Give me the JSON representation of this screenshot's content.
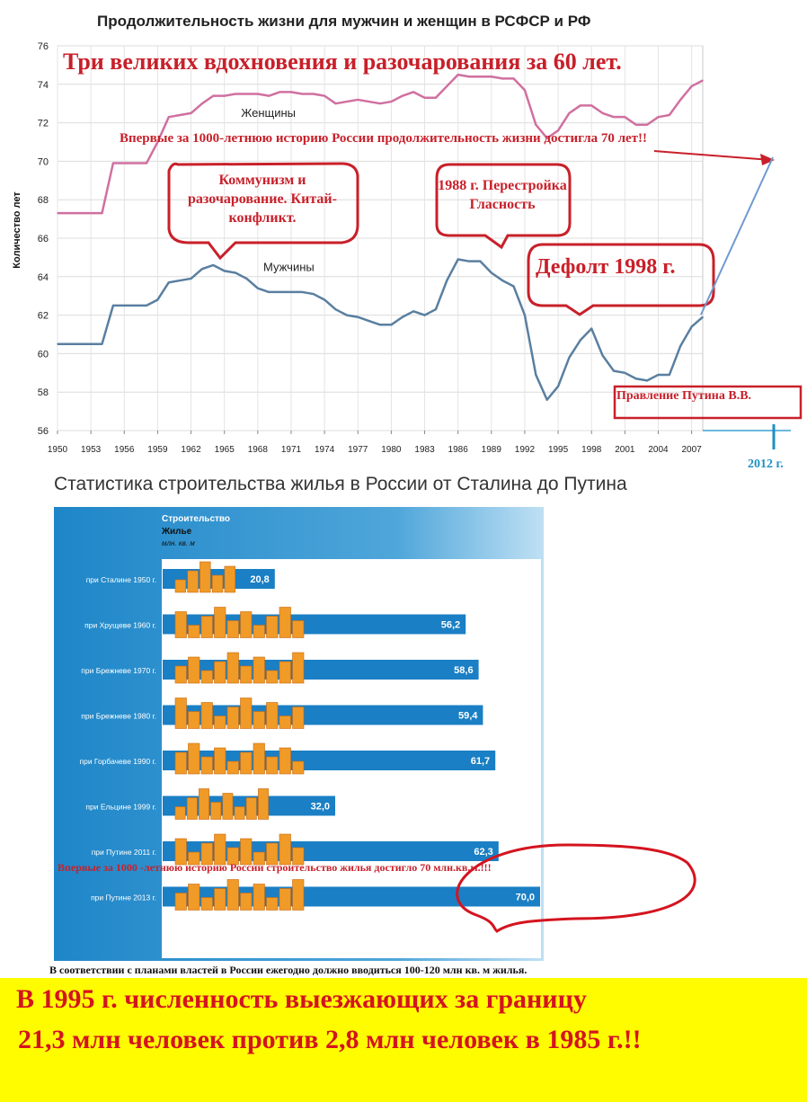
{
  "chart_data": [
    {
      "type": "line",
      "title": "Продолжительность жизни для мужчин и женщин в РСФСР и РФ",
      "ylabel": "Количество лет",
      "xlabel": "",
      "ylim": [
        56,
        76
      ],
      "xlim": [
        1950,
        2008
      ],
      "yticks": [
        56,
        58,
        60,
        62,
        64,
        66,
        68,
        70,
        72,
        74,
        76
      ],
      "xticks": [
        "1950",
        "1953",
        "1956",
        "1959",
        "1962",
        "1965",
        "1968",
        "1971",
        "1974",
        "1977",
        "1980",
        "1983",
        "1986",
        "1989",
        "1992",
        "1995",
        "1998",
        "2001",
        "2004",
        "2007"
      ],
      "grid": true,
      "series": [
        {
          "name": "Женщины",
          "color": "#d070a0",
          "x": [
            1950,
            1951,
            1952,
            1953,
            1954,
            1955,
            1956,
            1957,
            1958,
            1959,
            1960,
            1961,
            1962,
            1963,
            1964,
            1965,
            1966,
            1967,
            1968,
            1969,
            1970,
            1971,
            1972,
            1973,
            1974,
            1975,
            1976,
            1977,
            1978,
            1979,
            1980,
            1981,
            1982,
            1983,
            1984,
            1985,
            1986,
            1987,
            1988,
            1989,
            1990,
            1991,
            1992,
            1993,
            1994,
            1995,
            1996,
            1997,
            1998,
            1999,
            2000,
            2001,
            2002,
            2003,
            2004,
            2005,
            2006,
            2007,
            2008
          ],
          "y": [
            67.3,
            67.3,
            67.3,
            67.3,
            67.3,
            69.9,
            69.9,
            69.9,
            69.9,
            71.0,
            72.3,
            72.4,
            72.5,
            73.0,
            73.4,
            73.4,
            73.5,
            73.5,
            73.5,
            73.4,
            73.6,
            73.6,
            73.5,
            73.5,
            73.4,
            73.0,
            73.1,
            73.2,
            73.1,
            73.0,
            73.1,
            73.4,
            73.6,
            73.3,
            73.3,
            73.9,
            74.5,
            74.4,
            74.4,
            74.4,
            74.3,
            74.3,
            73.7,
            71.9,
            71.2,
            71.6,
            72.5,
            72.9,
            72.9,
            72.5,
            72.3,
            72.3,
            71.9,
            71.9,
            72.3,
            72.4,
            73.2,
            73.9,
            74.2
          ]
        },
        {
          "name": "Мужчины",
          "color": "#5a7fa0",
          "x": [
            1950,
            1951,
            1952,
            1953,
            1954,
            1955,
            1956,
            1957,
            1958,
            1959,
            1960,
            1961,
            1962,
            1963,
            1964,
            1965,
            1966,
            1967,
            1968,
            1969,
            1970,
            1971,
            1972,
            1973,
            1974,
            1975,
            1976,
            1977,
            1978,
            1979,
            1980,
            1981,
            1982,
            1983,
            1984,
            1985,
            1986,
            1987,
            1988,
            1989,
            1990,
            1991,
            1992,
            1993,
            1994,
            1995,
            1996,
            1997,
            1998,
            1999,
            2000,
            2001,
            2002,
            2003,
            2004,
            2005,
            2006,
            2007,
            2008
          ],
          "y": [
            60.5,
            60.5,
            60.5,
            60.5,
            60.5,
            62.5,
            62.5,
            62.5,
            62.5,
            62.8,
            63.7,
            63.8,
            63.9,
            64.4,
            64.6,
            64.3,
            64.2,
            63.9,
            63.4,
            63.2,
            63.2,
            63.2,
            63.2,
            63.1,
            62.8,
            62.3,
            62.0,
            61.9,
            61.7,
            61.5,
            61.5,
            61.9,
            62.2,
            62.0,
            62.3,
            63.8,
            64.9,
            64.8,
            64.8,
            64.2,
            63.8,
            63.5,
            62.0,
            58.9,
            57.6,
            58.3,
            59.8,
            60.7,
            61.3,
            59.9,
            59.1,
            59.0,
            58.7,
            58.6,
            58.9,
            58.9,
            60.4,
            61.4,
            61.9
          ]
        }
      ],
      "annotations": [
        "Три великих вдохновения и разочарования за 60 лет.",
        "Впервые за 1000-летнюю историю России продолжительность жизни достигла 70 лет!!",
        "Коммунизм и разочарование. Китай-конфликт.",
        "1988 г. Перестройка Гласность",
        "Дефолт 1998 г.",
        "Правление Путина В.В.",
        "2012 г."
      ]
    },
    {
      "type": "bar",
      "orientation": "horizontal",
      "title": "Статистика строительства жилья в России от Сталина до Путина",
      "panel_title": "Строительство",
      "panel_subtitle": "Жилье",
      "units": "млн. кв. м",
      "xlim": [
        0,
        70
      ],
      "categories": [
        "при Сталине 1950 г.",
        "при Хрущеве 1960 г.",
        "при Брежневе 1970 г.",
        "при Брежневе 1980 г.",
        "при Горбачеве 1990 г.",
        "при Ельцине 1999 г.",
        "при Путине 2011 г.",
        "при Путине 2013 г."
      ],
      "values": [
        20.8,
        56.2,
        58.6,
        59.4,
        61.7,
        32.0,
        62.3,
        70.0
      ],
      "value_labels": [
        "20,8",
        "56,2",
        "58,6",
        "59,4",
        "61,7",
        "32,0",
        "62,3",
        "70,0"
      ],
      "bar_color": "#1a7fc4",
      "annotations": [
        "Впервые за 1000 -летнюю историю России строительство жилья достигло 70 млн.кв.м.!!!"
      ]
    }
  ],
  "plan_note": "В соответствии с планами властей  в России ежегодно должно вводиться 100-120 млн кв. м жилья.",
  "banner": {
    "line1": "В 1995 г. численность выезжающих за границу",
    "line2": "21,3 млн человек против 2,8 млн человек в 1985 г.!!"
  }
}
